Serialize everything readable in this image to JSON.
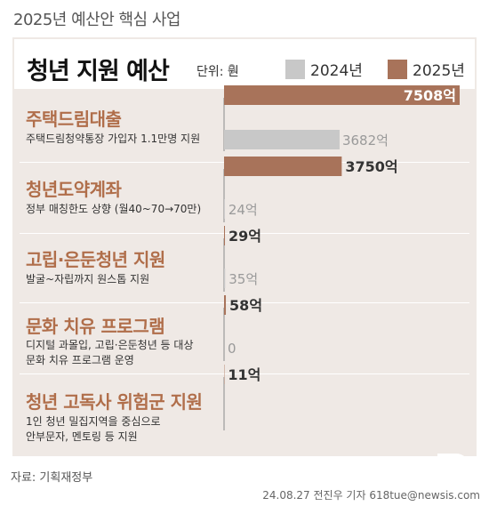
{
  "header": {
    "supertitle": "2025년 예산안 핵심 사업"
  },
  "panel": {
    "title": "청년 지원 예산",
    "unit": "단위: 원"
  },
  "colors": {
    "y2024": "#c8c8c8",
    "y2025": "#a8735a",
    "accent": "#b06e4a",
    "panel_bg": "#efe9e5"
  },
  "chart_data": {
    "type": "bar",
    "orientation": "horizontal",
    "title": "청년 지원 예산",
    "unit": "단위: 원",
    "categories": [
      "주택드림대출",
      "청년도약계좌",
      "고립·은둔청년 지원",
      "문화 치유 프로그램",
      "청년 고독사 위험군 지원"
    ],
    "descriptions": [
      [
        "주택드림청약통장 가입자 1.1만명 지원"
      ],
      [
        "정부 매칭한도 상향 (월40~70→70만)"
      ],
      [
        "발굴~자립까지 원스톱 지원"
      ],
      [
        "디지털 과몰입, 고립·은둔청년 등 대상",
        "문화 치유 프로그램 운영"
      ],
      [
        "1인 청년 밀집지역을 중심으로",
        "안부문자, 멘토링 등 지원"
      ]
    ],
    "series": [
      {
        "name": "2024년",
        "values": [
          0,
          3682,
          24,
          35,
          0
        ],
        "labels": [
          "0",
          "3682억",
          "24억",
          "35억",
          "0"
        ]
      },
      {
        "name": "2025년",
        "values": [
          7508,
          3750,
          29,
          58,
          11
        ],
        "labels": [
          "7508억",
          "3750억",
          "29억",
          "58억",
          "11억"
        ]
      }
    ],
    "legend_position": "top-right",
    "grid": false
  },
  "footer": {
    "source": "자료: 기획재정부",
    "credit": "24.08.27 전진우 기자 618tue@newsis.com",
    "logo": "뉴시스"
  }
}
